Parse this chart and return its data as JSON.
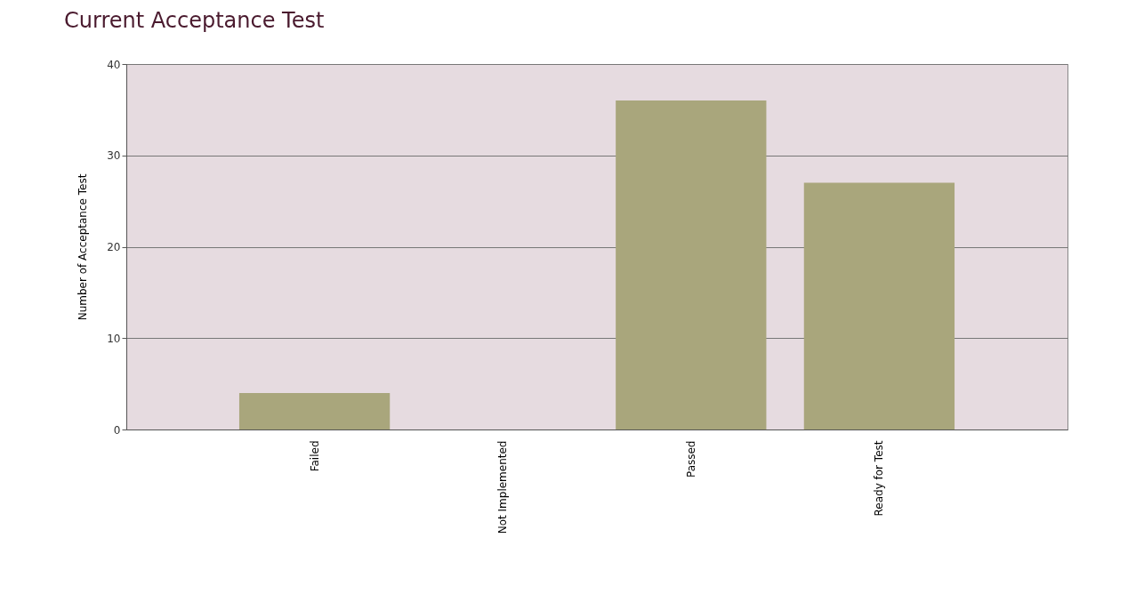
{
  "chart_data": {
    "type": "bar",
    "title": "Current Acceptance Test",
    "ylabel": "Number of Acceptance Test",
    "categories": [
      "Failed",
      "Not Implemented",
      "Passed",
      "Ready for Test"
    ],
    "values": [
      4,
      0,
      36,
      27
    ],
    "color": "#a9a67c",
    "ylim": [
      0,
      40
    ],
    "yticks": [
      0,
      10,
      20,
      30,
      40
    ],
    "grid": "y"
  }
}
